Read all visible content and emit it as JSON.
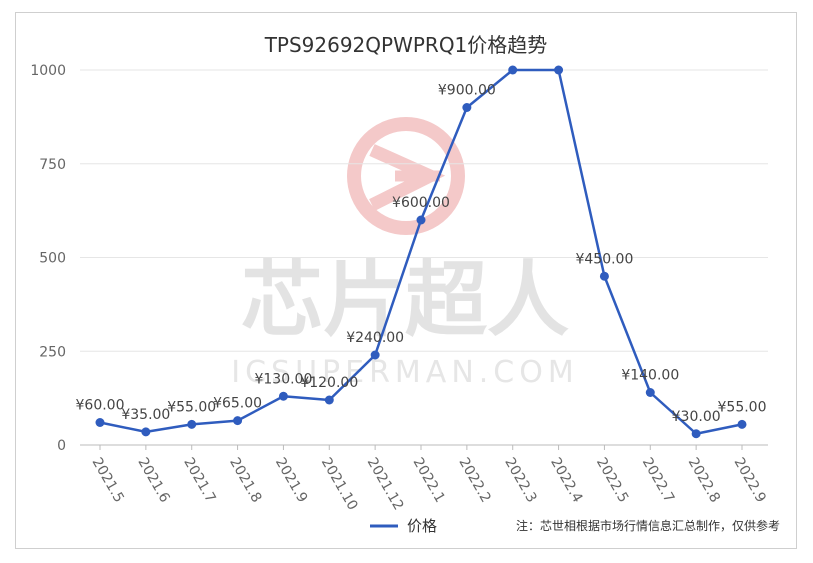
{
  "watermark": {
    "brand": "芯片超人",
    "site": "ICSUPERMAN.COM"
  },
  "note": "注：芯世相根据市场行情信息汇总制作，仅供参考",
  "chart_data": {
    "type": "line",
    "title": "TPS92692QPWPRQ1价格趋势",
    "categories": [
      "2021.5",
      "2021.6",
      "2021.7",
      "2021.8",
      "2021.9",
      "2021.10",
      "2021.12",
      "2022.1",
      "2022.2",
      "2022.3",
      "2022.4",
      "2022.5",
      "2022.7",
      "2022.8",
      "2022.9"
    ],
    "series": [
      {
        "name": "价格",
        "values": [
          60,
          35,
          55,
          65,
          130,
          120,
          240,
          600,
          900,
          1000,
          1000,
          450,
          140,
          30,
          55
        ],
        "labels": [
          "¥60.00",
          "¥35.00",
          "¥55.00",
          "¥65.00",
          "¥130.00",
          "¥120.00",
          "¥240.00",
          "¥600.00",
          "¥900.00",
          "",
          "",
          "¥450.00",
          "¥140.00",
          "¥30.00",
          "¥55.00"
        ],
        "color": "#2f5cbe"
      }
    ],
    "yticks": [
      0,
      250,
      500,
      750,
      1000
    ],
    "ylim": [
      0,
      1000
    ],
    "grid": true,
    "legend": "bottom-center"
  }
}
